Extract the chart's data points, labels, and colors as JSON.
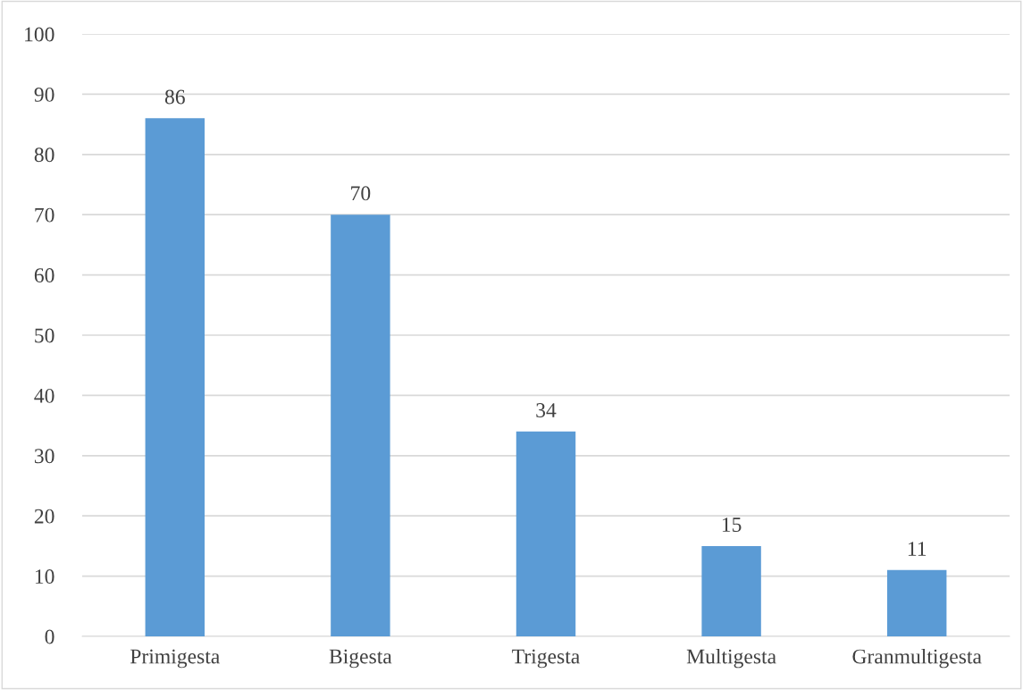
{
  "chart_data": {
    "type": "bar",
    "categories": [
      "Primigesta",
      "Bigesta",
      "Trigesta",
      "Multigesta",
      "Granmultigesta"
    ],
    "values": [
      86,
      70,
      34,
      15,
      11
    ],
    "color": "#5b9bd5",
    "ylim": [
      0,
      100
    ],
    "yticks": [
      0,
      10,
      20,
      30,
      40,
      50,
      60,
      70,
      80,
      90,
      100
    ],
    "grid": "y",
    "data_labels": true
  }
}
